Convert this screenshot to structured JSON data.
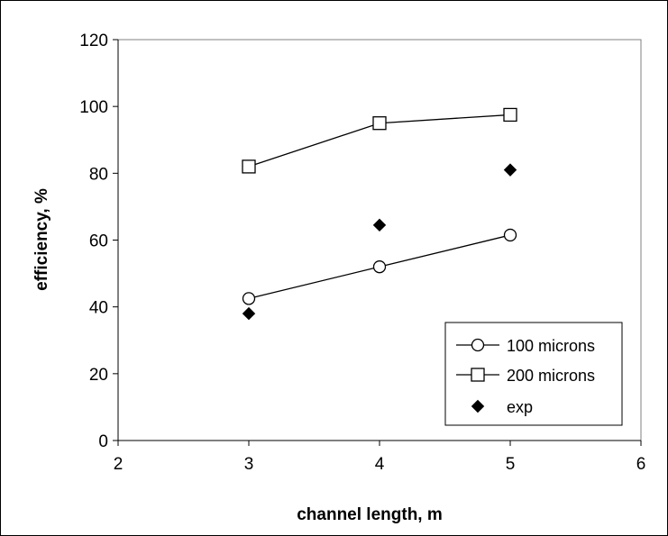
{
  "chart_data": {
    "type": "scatter",
    "title": "",
    "xlabel": "channel length, m",
    "ylabel": "efficiency, %",
    "xlim": [
      2,
      6
    ],
    "ylim": [
      0,
      120
    ],
    "xticks": [
      "2",
      "3",
      "4",
      "5",
      "6"
    ],
    "yticks": [
      "0",
      "20",
      "40",
      "60",
      "80",
      "100",
      "120"
    ],
    "grid": false,
    "legend_position": "bottom-right",
    "series": [
      {
        "name": "100 microns",
        "marker": "circle-open",
        "line": true,
        "x": [
          3,
          4,
          5
        ],
        "y": [
          42.5,
          52,
          61.5
        ]
      },
      {
        "name": "200 microns",
        "marker": "square-open",
        "line": true,
        "x": [
          3,
          4,
          5
        ],
        "y": [
          82,
          95,
          97.5
        ]
      },
      {
        "name": "exp",
        "marker": "diamond-filled",
        "line": false,
        "x": [
          3,
          4,
          5
        ],
        "y": [
          38,
          64.5,
          81
        ]
      }
    ]
  }
}
